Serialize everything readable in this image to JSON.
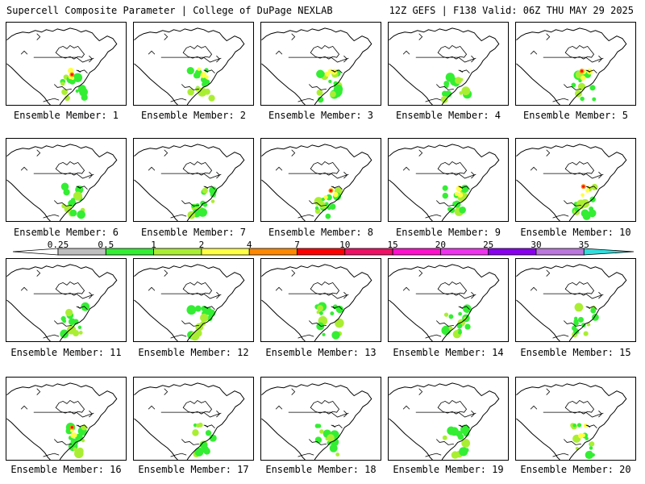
{
  "header": {
    "title_left": "Supercell Composite Parameter | College of DuPage NEXLAB",
    "title_right": "12Z GEFS | F138 Valid: 06Z THU MAY 29 2025"
  },
  "caption_prefix": "Ensemble Member: ",
  "members": [
    {
      "id": "1",
      "label": "Ensemble Member: 1",
      "max_level": 3
    },
    {
      "id": "2",
      "label": "Ensemble Member: 2",
      "max_level": 2
    },
    {
      "id": "3",
      "label": "Ensemble Member: 3",
      "max_level": 2
    },
    {
      "id": "4",
      "label": "Ensemble Member: 4",
      "max_level": 1
    },
    {
      "id": "5",
      "label": "Ensemble Member: 5",
      "max_level": 3
    },
    {
      "id": "6",
      "label": "Ensemble Member: 6",
      "max_level": 1
    },
    {
      "id": "7",
      "label": "Ensemble Member: 7",
      "max_level": 1
    },
    {
      "id": "8",
      "label": "Ensemble Member: 8",
      "max_level": 3
    },
    {
      "id": "9",
      "label": "Ensemble Member: 9",
      "max_level": 2
    },
    {
      "id": "10",
      "label": "Ensemble Member: 10",
      "max_level": 3
    },
    {
      "id": "11",
      "label": "Ensemble Member: 11",
      "max_level": 1
    },
    {
      "id": "12",
      "label": "Ensemble Member: 12",
      "max_level": 1
    },
    {
      "id": "13",
      "label": "Ensemble Member: 13",
      "max_level": 1
    },
    {
      "id": "14",
      "label": "Ensemble Member: 14",
      "max_level": 1
    },
    {
      "id": "15",
      "label": "Ensemble Member: 15",
      "max_level": 1
    },
    {
      "id": "16",
      "label": "Ensemble Member: 16",
      "max_level": 3
    },
    {
      "id": "17",
      "label": "Ensemble Member: 17",
      "max_level": 1
    },
    {
      "id": "18",
      "label": "Ensemble Member: 18",
      "max_level": 1
    },
    {
      "id": "19",
      "label": "Ensemble Member: 19",
      "max_level": 1
    },
    {
      "id": "20",
      "label": "Ensemble Member: 20",
      "max_level": 2
    }
  ],
  "colorbar": {
    "labels": [
      "0.25",
      "0.5",
      "1",
      "2",
      "4",
      "7",
      "10",
      "15",
      "20",
      "25",
      "30",
      "35"
    ],
    "colors": [
      "#ffffff",
      "#c0c0c0",
      "#33ee33",
      "#aaee33",
      "#ffff44",
      "#ff8800",
      "#ff0000",
      "#ee1166",
      "#ff11cc",
      "#ee33ee",
      "#8800ee",
      "#bb77dd",
      "#33dddd"
    ]
  }
}
